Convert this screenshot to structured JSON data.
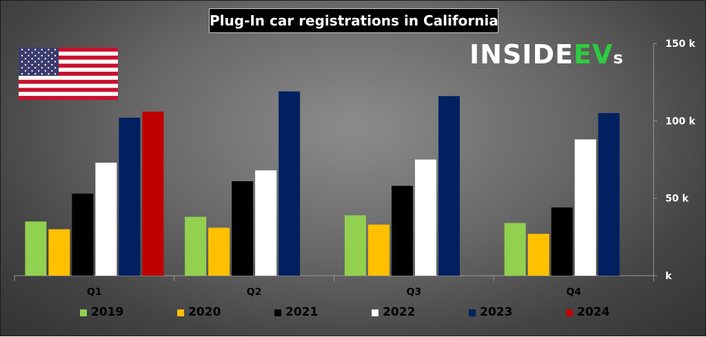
{
  "chart_data": {
    "type": "bar",
    "title": "Plug-In car registrations in California",
    "categories": [
      "Q1",
      "Q2",
      "Q3",
      "Q4"
    ],
    "series": [
      {
        "name": "2019",
        "color": "#92d050",
        "values": [
          35,
          38,
          39,
          34
        ]
      },
      {
        "name": "2020",
        "color": "#ffc000",
        "values": [
          30,
          31,
          33,
          27
        ]
      },
      {
        "name": "2021",
        "color": "#000000",
        "values": [
          53,
          61,
          58,
          44
        ]
      },
      {
        "name": "2022",
        "color": "#ffffff",
        "values": [
          73,
          68,
          75,
          88
        ]
      },
      {
        "name": "2023",
        "color": "#002060",
        "values": [
          102,
          119,
          116,
          105
        ]
      },
      {
        "name": "2024",
        "color": "#c00000",
        "values": [
          106,
          null,
          null,
          null
        ]
      }
    ],
    "ylim": [
      0,
      150
    ],
    "yticks": [
      0,
      50,
      100,
      150
    ],
    "ytick_labels": [
      "k",
      "50 k",
      "100 k",
      "150 k"
    ],
    "yaxis_position": "right",
    "grid": false,
    "legend_position": "bottom",
    "xlabel": "",
    "ylabel": ""
  },
  "brand": {
    "logo_text": "INSIDEEVs"
  },
  "flag": {
    "icon": "us-flag-icon"
  }
}
